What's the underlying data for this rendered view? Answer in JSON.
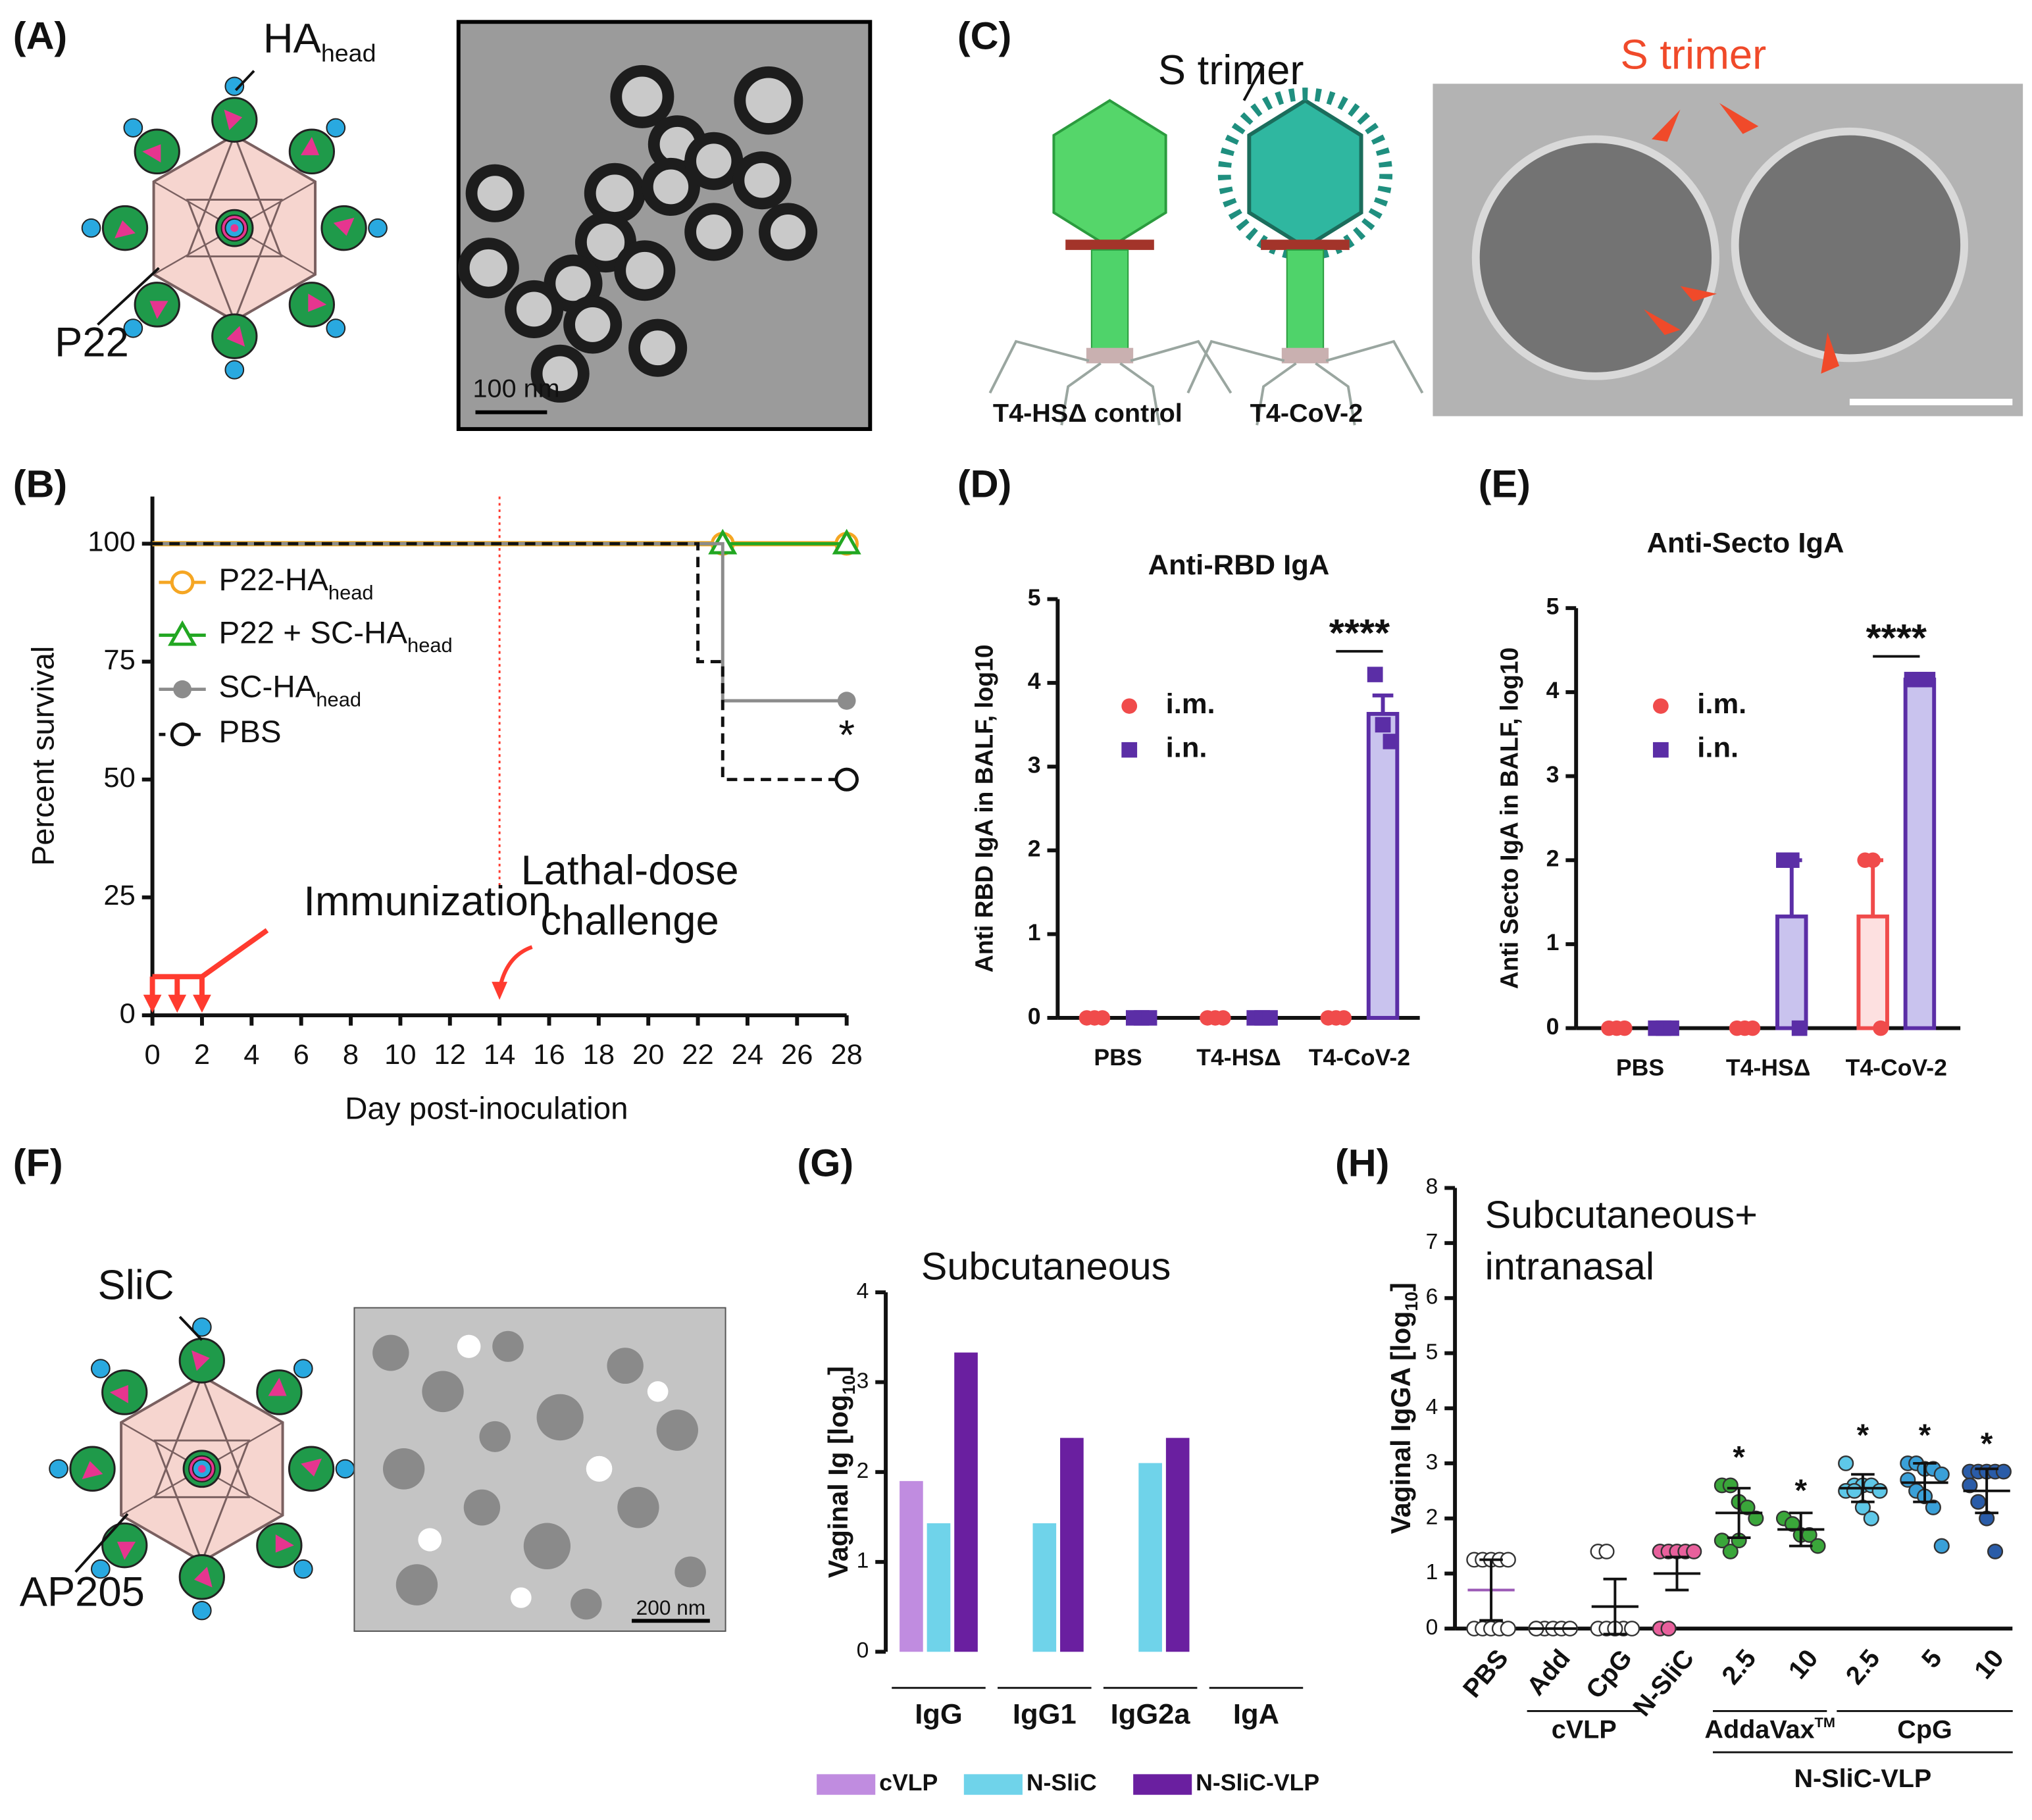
{
  "labels": {
    "panels": [
      "(A)",
      "(B)",
      "(C)",
      "(D)",
      "(E)",
      "(F)",
      "(G)",
      "(H)"
    ],
    "a_ha": "HA",
    "a_ha_sub": "head",
    "a_p22": "P22",
    "a_scale": "100 nm",
    "c_s_trimer": "S trimer",
    "c_s_trimer_em": "S trimer",
    "c_control": "T4-HSΔ control",
    "c_cov2": "T4-CoV-2",
    "f_slic": "SliC",
    "f_ap205": "AP205",
    "f_scale": "200 nm"
  },
  "chart_data": [
    {
      "type": "step",
      "ylabel": "Percent survival",
      "xlabel": "Day post-inoculation",
      "xlim": [
        0,
        28
      ],
      "xticks": [
        0,
        2,
        4,
        6,
        8,
        10,
        12,
        14,
        16,
        18,
        20,
        22,
        24,
        26,
        28
      ],
      "ylim": [
        0,
        110
      ],
      "yticks": [
        0,
        25,
        50,
        75,
        100
      ],
      "series": [
        {
          "name": "P22-HA",
          "name_sub": "head",
          "color": "#f5a623",
          "marker": "circle",
          "x": [
            0,
            23,
            28
          ],
          "values": [
            100,
            100,
            100
          ]
        },
        {
          "name": "P22 + SC-HA",
          "name_sub": "head",
          "color": "#22a722",
          "marker": "triangle",
          "x": [
            0,
            23,
            28
          ],
          "values": [
            100,
            100,
            100
          ]
        },
        {
          "name": "SC-HA",
          "name_sub": "head",
          "color": "#8c8c8c",
          "marker": "dot",
          "x": [
            0,
            23,
            28
          ],
          "values": [
            100,
            66.7,
            66.7
          ]
        },
        {
          "name": "PBS",
          "color": "#111111",
          "marker": "circle",
          "dash": true,
          "x": [
            0,
            22,
            23,
            28
          ],
          "values": [
            100,
            75,
            50,
            50
          ]
        }
      ],
      "annotation": "*",
      "vline": 14,
      "vline_color": "#ff3b2f",
      "immunization_label": "Immunization",
      "immunization_days": [
        0,
        1,
        2
      ],
      "challenge_label": [
        "Lathal-dose",
        "challenge"
      ]
    },
    {
      "type": "bar",
      "title": "Anti-RBD IgA",
      "ylabel": "Anti RBD IgA in BALF, log10",
      "categories": [
        "PBS",
        "T4-HSΔ",
        "T4-CoV-2"
      ],
      "ylim": [
        0,
        5
      ],
      "yticks": [
        0,
        1,
        2,
        3,
        4,
        5
      ],
      "series": [
        {
          "name": "i.m.",
          "color": "#f04b4b",
          "fill": "#fde0e0",
          "marker": "circle",
          "values": [
            0,
            0,
            0
          ],
          "errors": [
            0,
            0,
            0
          ],
          "points": [
            [
              0,
              0,
              0
            ],
            [
              0,
              0,
              0
            ],
            [
              0,
              0,
              0
            ]
          ]
        },
        {
          "name": "i.n.",
          "color": "#5b2ea6",
          "fill": "#c9c3ee",
          "marker": "square",
          "values": [
            0,
            0,
            3.63
          ],
          "errors": [
            0,
            0,
            0.22
          ],
          "points": [
            [
              0,
              0,
              0
            ],
            [
              0,
              0,
              0
            ],
            [
              4.1,
              3.5,
              3.3
            ]
          ]
        }
      ],
      "significance": "****",
      "significance_category": 2
    },
    {
      "type": "bar",
      "title": "Anti-Secto IgA",
      "ylabel": "Anti Secto IgA in BALF, log10",
      "categories": [
        "PBS",
        "T4-HSΔ",
        "T4-CoV-2"
      ],
      "ylim": [
        0,
        5
      ],
      "yticks": [
        0,
        1,
        2,
        3,
        4,
        5
      ],
      "series": [
        {
          "name": "i.m.",
          "color": "#f04b4b",
          "fill": "#fde0e0",
          "marker": "circle",
          "values": [
            0,
            0,
            1.33
          ],
          "errors": [
            0,
            0,
            0.67
          ],
          "points": [
            [
              0,
              0,
              0
            ],
            [
              0,
              0,
              0
            ],
            [
              2,
              2,
              0
            ]
          ]
        },
        {
          "name": "i.n.",
          "color": "#5b2ea6",
          "fill": "#c9c3ee",
          "marker": "square",
          "values": [
            0,
            1.33,
            4.15
          ],
          "errors": [
            0,
            0.67,
            0
          ],
          "points": [
            [
              0,
              0,
              0
            ],
            [
              2,
              2,
              0
            ],
            [
              4.15,
              4.15,
              4.15
            ]
          ]
        }
      ],
      "significance": "****",
      "significance_category": 2
    },
    {
      "type": "bar",
      "title": "Subcutaneous",
      "ylabel": "Vaginal Ig [log",
      "ylabel_sub": "10",
      "ylabel_end": "]",
      "categories": [
        "IgG",
        "IgG1",
        "IgG2a",
        "IgA"
      ],
      "ylim": [
        0,
        4
      ],
      "yticks": [
        0,
        1,
        2,
        3,
        4
      ],
      "series": [
        {
          "name": "cVLP",
          "color": "#c08ce0",
          "values": [
            1.9,
            null,
            null,
            null
          ]
        },
        {
          "name": "N-SliC",
          "color": "#6fd3ea",
          "values": [
            1.43,
            1.43,
            2.1,
            null
          ]
        },
        {
          "name": "N-SliC-VLP",
          "color": "#6a1fa0",
          "values": [
            3.33,
            2.38,
            2.38,
            null
          ]
        }
      ],
      "legend": "bottom"
    },
    {
      "type": "dot",
      "title": [
        "Subcutaneous+",
        "intranasal"
      ],
      "ylabel": "Vaginal IgGA [log",
      "ylabel_sub": "10",
      "ylabel_end": "]",
      "ylim": [
        0,
        8
      ],
      "yticks": [
        0,
        1,
        2,
        3,
        4,
        5,
        6,
        7,
        8
      ],
      "categories": [
        "PBS",
        "Add",
        "CpG",
        "N-SliC",
        "2.5",
        "10",
        "2.5",
        "5",
        "10"
      ],
      "colors": [
        "#ffffff",
        "#ffffff",
        "#ffffff",
        "#e8609c",
        "#3aa63a",
        "#3aa63a",
        "#5ec8e8",
        "#3aa0d8",
        "#2a5ca8"
      ],
      "values": [
        0.7,
        0,
        0.4,
        1.0,
        2.1,
        1.8,
        2.55,
        2.65,
        2.5
      ],
      "errors": [
        0.55,
        0,
        0.5,
        0.3,
        0.45,
        0.3,
        0.25,
        0.35,
        0.4
      ],
      "points": [
        [
          1.25,
          1.25,
          1.25,
          1.25,
          1.25,
          0,
          0,
          0,
          0,
          0
        ],
        [
          0,
          0,
          0,
          0,
          0,
          0
        ],
        [
          1.4,
          1.4,
          0,
          0,
          0,
          0,
          0,
          0
        ],
        [
          1.4,
          1.4,
          1.4,
          1.4,
          1.4,
          0,
          0
        ],
        [
          2.6,
          2.6,
          2.3,
          2.2,
          2.0,
          1.6,
          1.4,
          1.6
        ],
        [
          2.0,
          1.9,
          1.7,
          1.7,
          1.5
        ],
        [
          3.0,
          2.6,
          2.6,
          2.6,
          2.5,
          2.5,
          2.5,
          2.2,
          2.0
        ],
        [
          3.0,
          3.0,
          2.9,
          2.9,
          2.8,
          2.7,
          2.5,
          2.4,
          2.2,
          1.5
        ],
        [
          2.85,
          2.85,
          2.85,
          2.85,
          2.85,
          2.6,
          2.3,
          2.0,
          1.4
        ]
      ],
      "annotations": [
        null,
        null,
        null,
        null,
        "*",
        "*",
        "*",
        "*",
        "*"
      ],
      "groups": [
        {
          "label": "cVLP",
          "from": 1,
          "to": 2,
          "level": 1
        },
        {
          "label": "AddaVax",
          "label_sup": "TM",
          "from": 4,
          "to": 5,
          "level": 1
        },
        {
          "label": "CpG",
          "from": 6,
          "to": 8,
          "level": 1
        },
        {
          "label": "N-SliC-VLP",
          "from": 4,
          "to": 8,
          "level": 2
        }
      ]
    }
  ]
}
